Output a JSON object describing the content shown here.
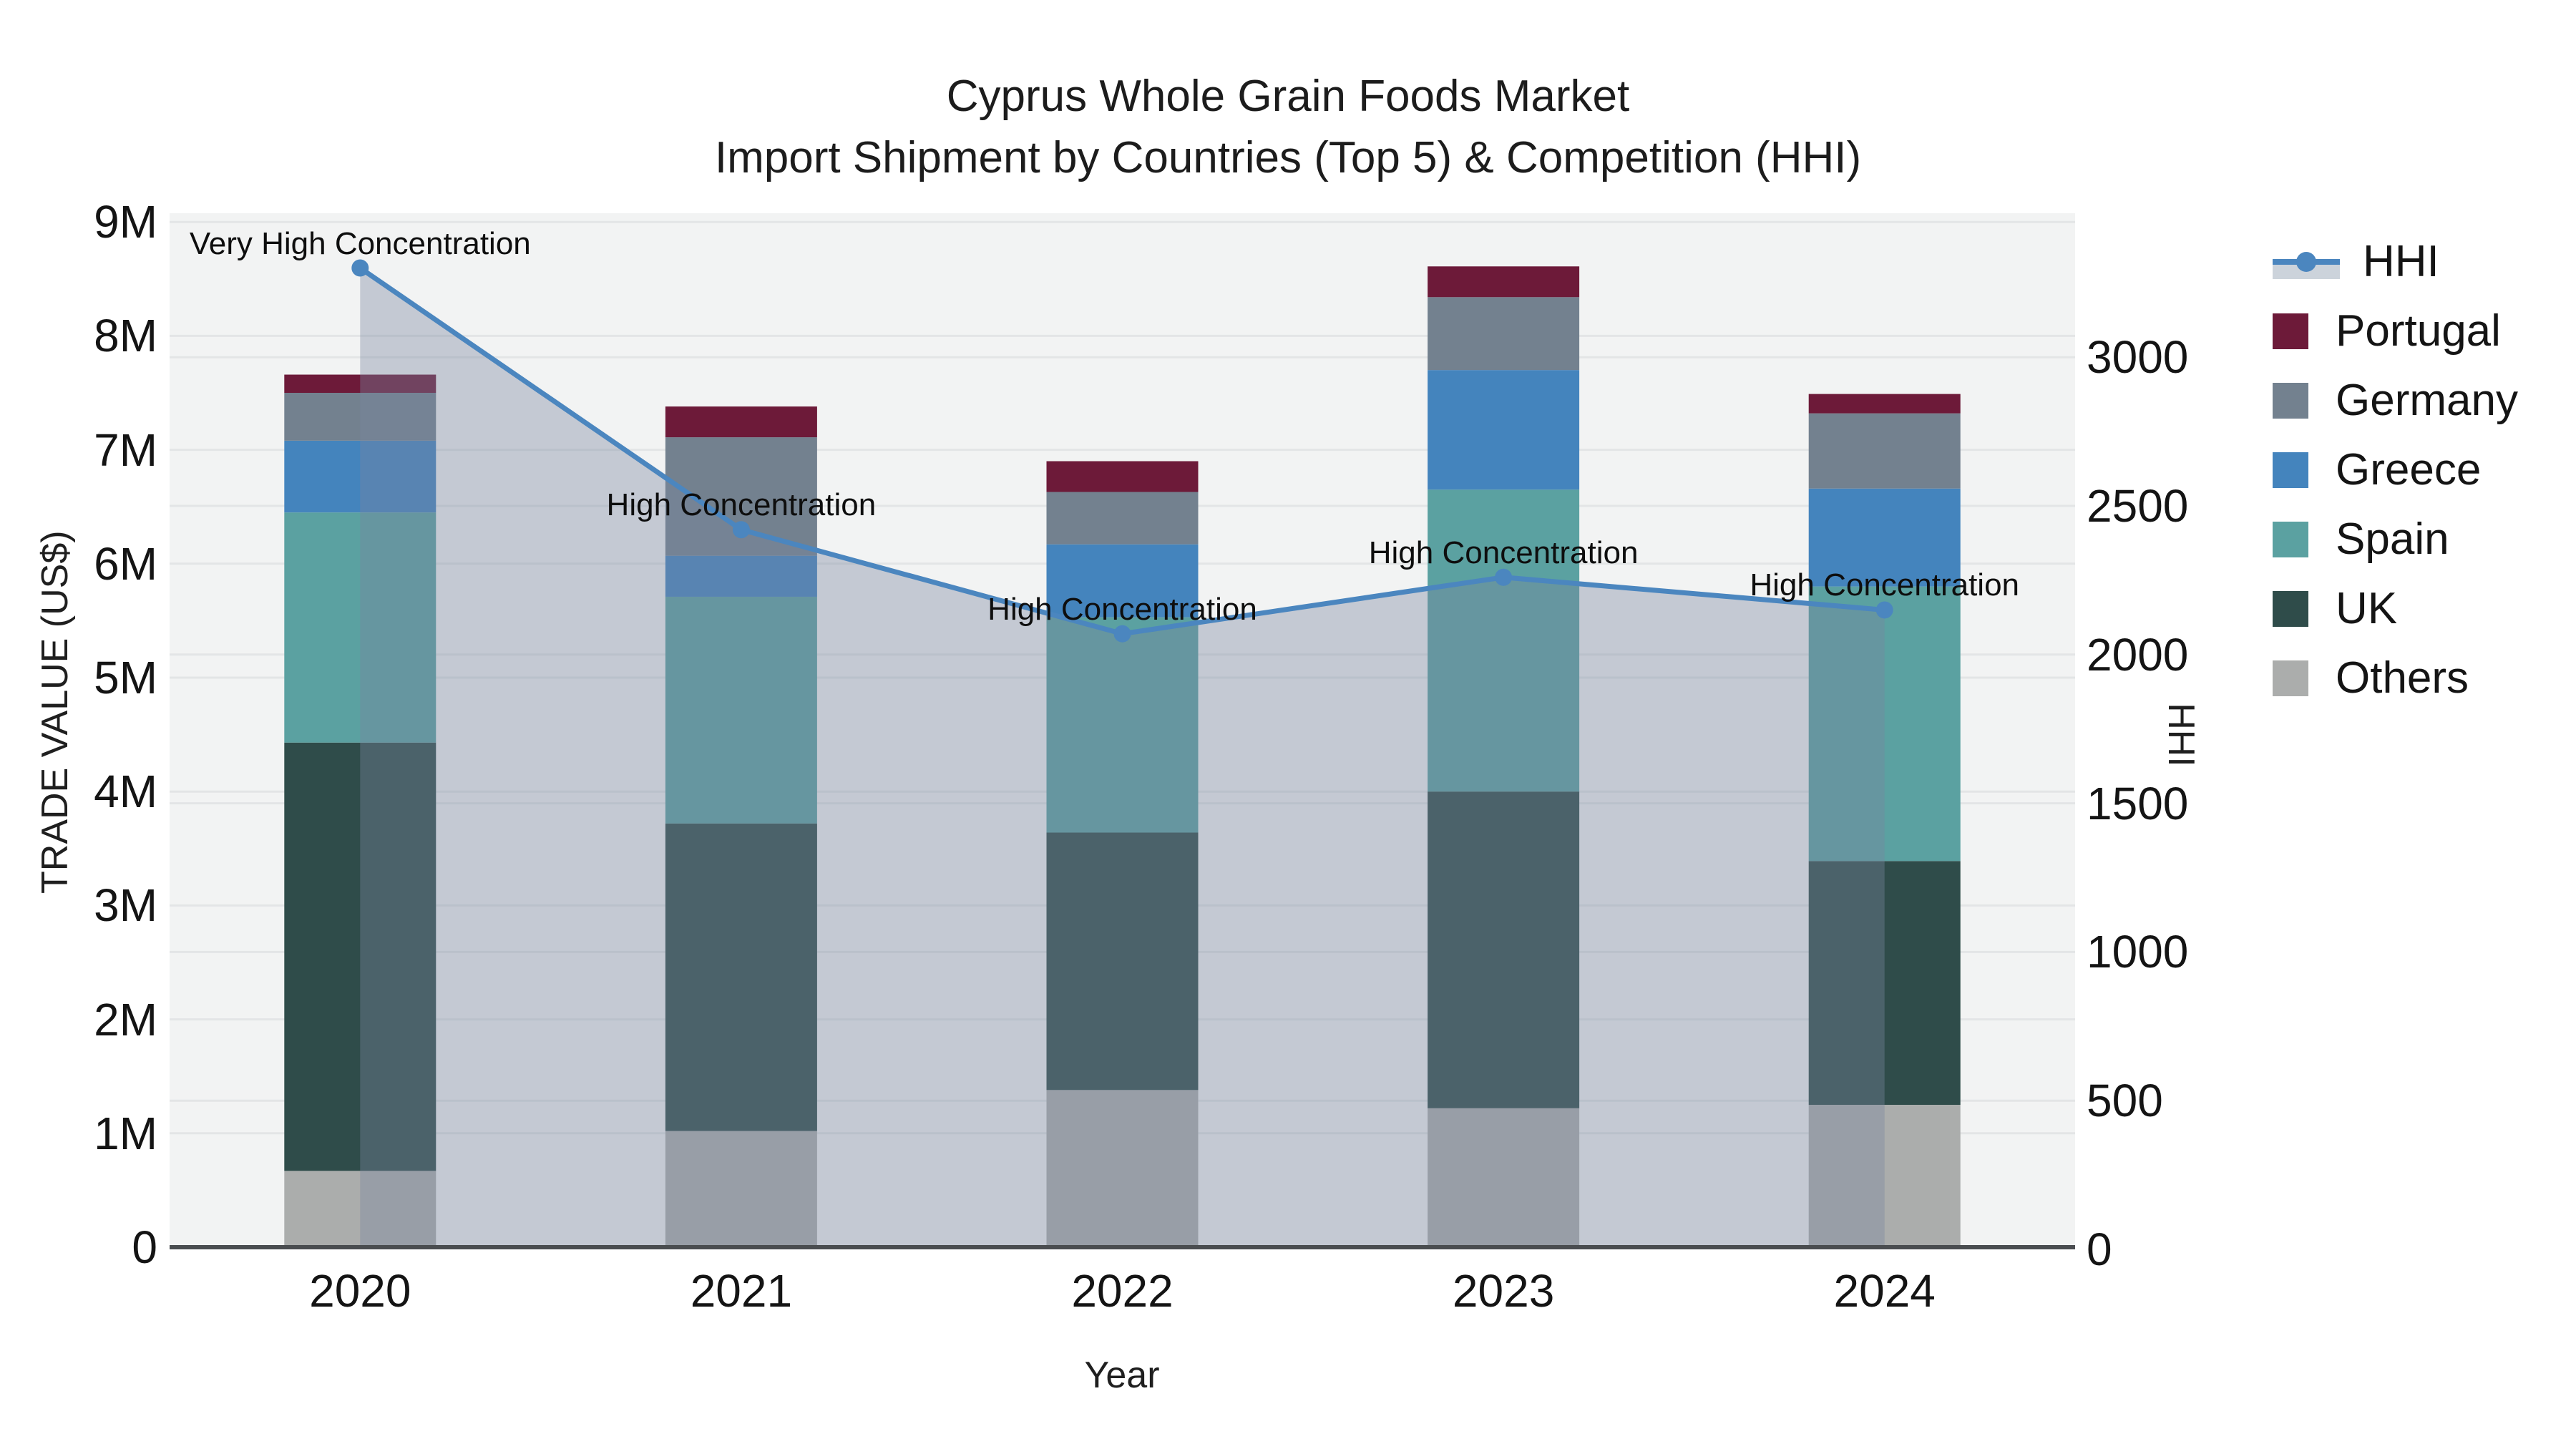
{
  "title": {
    "line1": "Cyprus Whole Grain Foods Market",
    "line2": "Import Shipment by Countries (Top 5) & Competition (HHI)"
  },
  "axes": {
    "y_left": {
      "title": "TRADE VALUE (US$)",
      "tick_labels": [
        "0",
        "1M",
        "2M",
        "3M",
        "4M",
        "5M",
        "6M",
        "7M",
        "8M",
        "9M"
      ]
    },
    "y_right": {
      "title": "HHI",
      "tick_labels": [
        "0",
        "500",
        "1000",
        "1500",
        "2000",
        "2500",
        "3000"
      ]
    },
    "x": {
      "title": "Year",
      "tick_labels": [
        "2020",
        "2021",
        "2022",
        "2023",
        "2024"
      ]
    }
  },
  "legend": {
    "items": [
      {
        "label": "HHI",
        "type": "line",
        "color": "#4b86bf"
      },
      {
        "label": "Portugal",
        "type": "swatch",
        "color": "#6d1a39"
      },
      {
        "label": "Germany",
        "type": "swatch",
        "color": "#73818f"
      },
      {
        "label": "Greece",
        "type": "swatch",
        "color": "#4484bd"
      },
      {
        "label": "Spain",
        "type": "swatch",
        "color": "#5ba1a1"
      },
      {
        "label": "UK",
        "type": "swatch",
        "color": "#2f4c4a"
      },
      {
        "label": "Others",
        "type": "swatch",
        "color": "#abadac"
      }
    ]
  },
  "colors": {
    "plot_bg": "#f2f3f3",
    "gridline": "#e3e5e6",
    "baseline": "#4a4d50",
    "hhi_line": "#4b86bf",
    "hhi_fill": "rgba(120,135,160,0.38)"
  },
  "chart_data": [
    {
      "type": "bar",
      "stacked": true,
      "title": "Cyprus Whole Grain Foods Market — Import Shipment by Countries (Top 5)",
      "xlabel": "Year",
      "ylabel": "TRADE VALUE (US$)",
      "unit": "millions USD",
      "ylim": [
        0,
        9.08
      ],
      "categories": [
        "2020",
        "2021",
        "2022",
        "2023",
        "2024"
      ],
      "series": [
        {
          "name": "Others",
          "color": "#abadac",
          "values": [
            0.67,
            1.02,
            1.38,
            1.22,
            1.25
          ]
        },
        {
          "name": "UK",
          "color": "#2f4c4a",
          "values": [
            3.76,
            2.7,
            2.26,
            2.78,
            2.14
          ]
        },
        {
          "name": "Spain",
          "color": "#5ba1a1",
          "values": [
            2.02,
            1.99,
            1.89,
            2.65,
            2.41
          ]
        },
        {
          "name": "Greece",
          "color": "#4484bd",
          "values": [
            0.63,
            0.36,
            0.64,
            1.05,
            0.86
          ]
        },
        {
          "name": "Germany",
          "color": "#73818f",
          "values": [
            0.42,
            1.04,
            0.46,
            0.64,
            0.66
          ]
        },
        {
          "name": "Portugal",
          "color": "#6d1a39",
          "values": [
            0.16,
            0.27,
            0.27,
            0.27,
            0.17
          ]
        }
      ],
      "totals": [
        7.66,
        7.38,
        6.9,
        8.61,
        7.49
      ],
      "legend_position": "right",
      "grid": true
    },
    {
      "type": "line",
      "name": "HHI",
      "axis": "right",
      "ylabel": "HHI",
      "ylim": [
        0,
        3480
      ],
      "x": [
        "2020",
        "2021",
        "2022",
        "2023",
        "2024"
      ],
      "values": [
        3300,
        2420,
        2070,
        2260,
        2150
      ],
      "fill": "tozeroy",
      "color": "#4b86bf",
      "marker": "circle",
      "annotations": [
        {
          "x": "2020",
          "text": "Very High Concentration"
        },
        {
          "x": "2021",
          "text": "High Concentration"
        },
        {
          "x": "2022",
          "text": "High Concentration"
        },
        {
          "x": "2023",
          "text": "High Concentration"
        },
        {
          "x": "2024",
          "text": "High Concentration"
        }
      ]
    }
  ]
}
